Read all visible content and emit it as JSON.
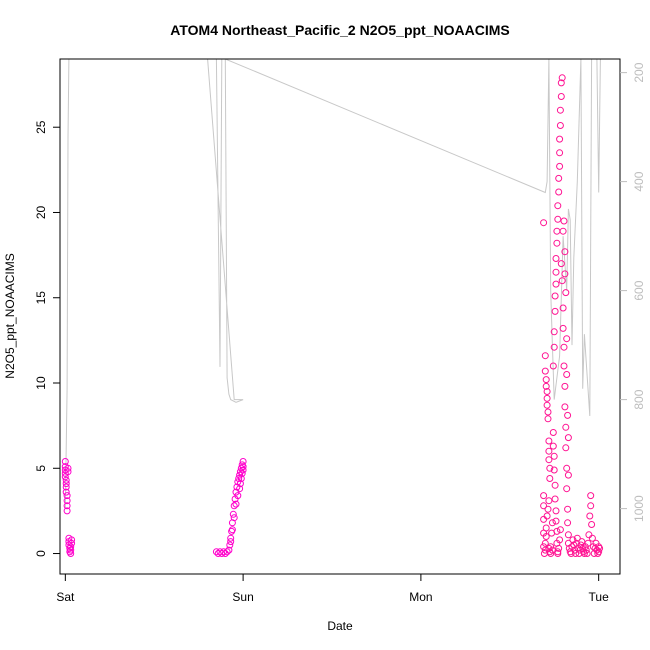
{
  "chart_data": {
    "type": "scatter",
    "title": "ATOM4 Northeast_Pacific_2 N2O5_ppt_NOAACIMS",
    "xlabel": "Date",
    "ylabel": "N2O5_ppt_NOAACIMS",
    "x_range_days": [
      -0.03,
      3.12
    ],
    "x_ticks": [
      {
        "label": "Sat",
        "value": 0
      },
      {
        "label": "Sun",
        "value": 1
      },
      {
        "label": "Mon",
        "value": 2
      },
      {
        "label": "Tue",
        "value": 3
      }
    ],
    "ylim": [
      -1.2,
      29
    ],
    "y_ticks": [
      0,
      5,
      10,
      15,
      20,
      25
    ],
    "right_axis": {
      "range": [
        1120,
        175
      ],
      "reversed": true,
      "ticks": [
        200,
        400,
        600,
        800,
        1000
      ],
      "color": "#bdbdbd"
    },
    "point_color": "#ff1493",
    "point_color_alt": "#ff00cc",
    "line_color": "#c8c8c8",
    "series": [
      {
        "marker": "circle",
        "points": [
          [
            0.0,
            5.4
          ],
          [
            0.0,
            5.1
          ],
          [
            0.0,
            4.9
          ],
          [
            0.0,
            4.7
          ],
          [
            0.0,
            4.5
          ],
          [
            0.005,
            4.3
          ],
          [
            0.005,
            4.1
          ],
          [
            0.005,
            3.9
          ],
          [
            0.005,
            3.6
          ],
          [
            0.01,
            3.4
          ],
          [
            0.01,
            3.1
          ],
          [
            0.01,
            2.8
          ],
          [
            0.01,
            2.5
          ],
          [
            0.015,
            4.8
          ],
          [
            0.015,
            5.0
          ],
          [
            0.02,
            0.9
          ],
          [
            0.02,
            0.7
          ],
          [
            0.02,
            0.5
          ],
          [
            0.025,
            0.3
          ],
          [
            0.025,
            0.1
          ],
          [
            0.03,
            0.0
          ],
          [
            0.03,
            0.2
          ],
          [
            0.03,
            0.4
          ],
          [
            0.035,
            0.6
          ],
          [
            0.035,
            0.8
          ],
          [
            0.85,
            0.1
          ],
          [
            0.86,
            0.0
          ],
          [
            0.87,
            0.1
          ],
          [
            0.88,
            0.0
          ],
          [
            0.89,
            0.1
          ],
          [
            0.9,
            0.0
          ],
          [
            0.91,
            0.1
          ],
          [
            0.92,
            0.2
          ],
          [
            0.925,
            0.5
          ],
          [
            0.93,
            0.9
          ],
          [
            0.935,
            1.3
          ],
          [
            0.94,
            1.8
          ],
          [
            0.945,
            2.3
          ],
          [
            0.95,
            2.8
          ],
          [
            0.955,
            3.2
          ],
          [
            0.96,
            3.6
          ],
          [
            0.965,
            3.9
          ],
          [
            0.97,
            4.2
          ],
          [
            0.975,
            4.4
          ],
          [
            0.98,
            4.6
          ],
          [
            0.985,
            4.8
          ],
          [
            0.99,
            5.0
          ],
          [
            0.995,
            5.2
          ],
          [
            1.0,
            5.4
          ],
          [
            1.0,
            5.1
          ],
          [
            0.97,
            3.4
          ],
          [
            0.96,
            2.9
          ],
          [
            0.95,
            2.1
          ],
          [
            0.94,
            1.4
          ],
          [
            0.93,
            0.7
          ],
          [
            0.985,
            4.1
          ],
          [
            0.99,
            4.4
          ],
          [
            0.995,
            4.7
          ],
          [
            1.0,
            4.9
          ],
          [
            0.98,
            3.8
          ],
          [
            2.69,
            19.4
          ],
          [
            2.7,
            11.6
          ],
          [
            2.7,
            10.7
          ],
          [
            2.705,
            10.2
          ],
          [
            2.705,
            9.8
          ],
          [
            2.71,
            9.5
          ],
          [
            2.71,
            9.1
          ],
          [
            2.71,
            8.7
          ],
          [
            2.715,
            8.3
          ],
          [
            2.715,
            7.9
          ],
          [
            2.72,
            6.6
          ],
          [
            2.72,
            6.0
          ],
          [
            2.72,
            5.5
          ],
          [
            2.725,
            5.0
          ],
          [
            2.725,
            4.4
          ],
          [
            2.69,
            3.4
          ],
          [
            2.69,
            2.8
          ],
          [
            2.69,
            2.0
          ],
          [
            2.69,
            1.2
          ],
          [
            2.69,
            0.4
          ],
          [
            2.695,
            0.0
          ],
          [
            2.7,
            0.2
          ],
          [
            2.7,
            0.6
          ],
          [
            2.705,
            1.0
          ],
          [
            2.705,
            1.5
          ],
          [
            2.71,
            2.2
          ],
          [
            2.715,
            2.6
          ],
          [
            2.72,
            3.1
          ],
          [
            2.72,
            0.3
          ],
          [
            2.725,
            0.1
          ],
          [
            2.73,
            0.0
          ],
          [
            2.73,
            0.4
          ],
          [
            2.735,
            1.2
          ],
          [
            2.74,
            1.8
          ],
          [
            2.74,
            0.2
          ],
          [
            2.745,
            7.1
          ],
          [
            2.745,
            6.3
          ],
          [
            2.75,
            5.7
          ],
          [
            2.75,
            4.9
          ],
          [
            2.755,
            4.0
          ],
          [
            2.755,
            3.2
          ],
          [
            2.76,
            2.5
          ],
          [
            2.76,
            1.9
          ],
          [
            2.765,
            1.3
          ],
          [
            2.765,
            0.6
          ],
          [
            2.77,
            0.1
          ],
          [
            2.77,
            0.0
          ],
          [
            2.775,
            0.3
          ],
          [
            2.78,
            0.8
          ],
          [
            2.785,
            1.4
          ],
          [
            2.745,
            11.0
          ],
          [
            2.75,
            12.1
          ],
          [
            2.75,
            13.0
          ],
          [
            2.755,
            14.2
          ],
          [
            2.755,
            15.1
          ],
          [
            2.76,
            15.8
          ],
          [
            2.76,
            16.5
          ],
          [
            2.76,
            17.3
          ],
          [
            2.765,
            18.2
          ],
          [
            2.765,
            18.9
          ],
          [
            2.77,
            19.6
          ],
          [
            2.77,
            20.4
          ],
          [
            2.775,
            21.2
          ],
          [
            2.775,
            22.0
          ],
          [
            2.78,
            22.7
          ],
          [
            2.78,
            23.5
          ],
          [
            2.78,
            24.3
          ],
          [
            2.785,
            25.1
          ],
          [
            2.785,
            26.0
          ],
          [
            2.79,
            26.8
          ],
          [
            2.79,
            27.6
          ],
          [
            2.795,
            27.9
          ],
          [
            2.79,
            17.0
          ],
          [
            2.795,
            16.0
          ],
          [
            2.8,
            14.4
          ],
          [
            2.8,
            13.2
          ],
          [
            2.805,
            12.1
          ],
          [
            2.805,
            11.0
          ],
          [
            2.81,
            9.8
          ],
          [
            2.81,
            8.6
          ],
          [
            2.815,
            7.4
          ],
          [
            2.815,
            6.2
          ],
          [
            2.82,
            5.0
          ],
          [
            2.82,
            3.8
          ],
          [
            2.825,
            2.6
          ],
          [
            2.825,
            1.8
          ],
          [
            2.83,
            1.1
          ],
          [
            2.83,
            0.6
          ],
          [
            2.835,
            0.3
          ],
          [
            2.84,
            0.1
          ],
          [
            2.845,
            0.0
          ],
          [
            2.85,
            0.4
          ],
          [
            2.855,
            0.8
          ],
          [
            2.86,
            0.5
          ],
          [
            2.865,
            0.2
          ],
          [
            2.87,
            0.0
          ],
          [
            2.875,
            0.6
          ],
          [
            2.88,
            0.9
          ],
          [
            2.885,
            0.3
          ],
          [
            2.89,
            0.0
          ],
          [
            2.895,
            0.2
          ],
          [
            2.9,
            0.5
          ],
          [
            2.905,
            0.7
          ],
          [
            2.91,
            0.3
          ],
          [
            2.915,
            0.1
          ],
          [
            2.92,
            0.0
          ],
          [
            2.925,
            0.4
          ],
          [
            2.93,
            0.2
          ],
          [
            2.935,
            0.0
          ],
          [
            2.94,
            0.6
          ],
          [
            2.945,
            1.1
          ],
          [
            2.95,
            2.2
          ],
          [
            2.955,
            3.4
          ],
          [
            2.955,
            2.8
          ],
          [
            2.96,
            1.7
          ],
          [
            2.965,
            0.9
          ],
          [
            2.97,
            0.4
          ],
          [
            2.975,
            0.0
          ],
          [
            2.98,
            0.3
          ],
          [
            2.985,
            0.6
          ],
          [
            2.99,
            0.2
          ],
          [
            2.995,
            0.0
          ],
          [
            3.0,
            0.4
          ],
          [
            3.0,
            0.1
          ],
          [
            3.005,
            0.3
          ],
          [
            2.8,
            18.9
          ],
          [
            2.805,
            19.5
          ],
          [
            2.81,
            17.7
          ],
          [
            2.81,
            16.4
          ],
          [
            2.815,
            15.3
          ],
          [
            2.82,
            12.6
          ],
          [
            2.82,
            10.5
          ],
          [
            2.825,
            8.1
          ],
          [
            2.83,
            6.8
          ],
          [
            2.83,
            4.6
          ]
        ]
      }
    ],
    "line_series": {
      "right_axis_values": [
        [
          0.0,
          1000
        ],
        [
          0.01,
          780
        ],
        [
          0.015,
          320
        ],
        [
          0.02,
          175
        ],
        [
          0.85,
          175
        ],
        [
          0.87,
          740
        ],
        [
          0.88,
          175
        ],
        [
          0.9,
          175
        ],
        [
          0.91,
          760
        ],
        [
          0.92,
          790
        ],
        [
          0.93,
          800
        ],
        [
          0.96,
          805
        ],
        [
          1.0,
          800
        ],
        [
          0.95,
          800
        ],
        [
          0.8,
          175
        ],
        [
          0.9,
          175
        ],
        [
          2.7,
          420
        ],
        [
          2.71,
          400
        ],
        [
          2.72,
          175
        ],
        [
          2.73,
          600
        ],
        [
          2.74,
          700
        ],
        [
          2.75,
          800
        ],
        [
          2.78,
          720
        ],
        [
          2.8,
          500
        ],
        [
          2.82,
          600
        ],
        [
          2.83,
          450
        ],
        [
          2.84,
          470
        ],
        [
          2.85,
          700
        ],
        [
          2.86,
          540
        ],
        [
          2.88,
          400
        ],
        [
          2.9,
          175
        ],
        [
          2.91,
          780
        ],
        [
          2.92,
          680
        ],
        [
          2.95,
          830
        ],
        [
          2.96,
          175
        ],
        [
          2.99,
          175
        ],
        [
          3.0,
          420
        ],
        [
          3.01,
          175
        ]
      ]
    }
  }
}
